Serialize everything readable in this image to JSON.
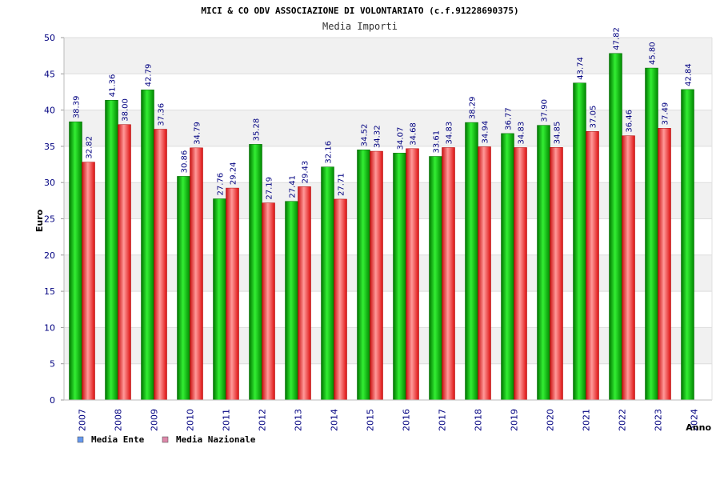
{
  "chart_data": {
    "type": "bar",
    "title": "MICI & CO ODV ASSOCIAZIONE DI VOLONTARIATO (c.f.91228690375)",
    "subtitle": "Media Importi",
    "xlabel": "Anno",
    "ylabel": "Euro",
    "ylim": [
      0,
      50
    ],
    "yticks": [
      "0",
      "5",
      "10",
      "15",
      "20",
      "25",
      "30",
      "35",
      "40",
      "45",
      "50"
    ],
    "grid": true,
    "legend_position": "bottom-left",
    "categories": [
      "2007",
      "2008",
      "2009",
      "2010",
      "2011",
      "2012",
      "2013",
      "2014",
      "2015",
      "2016",
      "2017",
      "2018",
      "2019",
      "2020",
      "2021",
      "2022",
      "2023",
      "2024"
    ],
    "series": [
      {
        "name": "Media Ente",
        "color": "#00bb00",
        "legend_color": "#6699ee",
        "values": [
          38.39,
          41.36,
          42.79,
          30.86,
          27.76,
          35.28,
          27.41,
          32.16,
          34.52,
          34.07,
          33.61,
          38.29,
          36.77,
          37.9,
          43.74,
          47.82,
          45.8,
          42.84
        ],
        "labels": [
          "38.39",
          "41.36",
          "42.79",
          "30.86",
          "27.76",
          "35.28",
          "27.41",
          "32.16",
          "34.52",
          "34.07",
          "33.61",
          "38.29",
          "36.77",
          "37.90",
          "43.74",
          "47.82",
          "45.80",
          "42.84"
        ]
      },
      {
        "name": "Media Nazionale",
        "color": "#ee2222",
        "legend_color": "#dd88aa",
        "values": [
          32.82,
          38.0,
          37.36,
          34.79,
          29.24,
          27.19,
          29.43,
          27.71,
          34.32,
          34.68,
          34.83,
          34.94,
          34.83,
          34.85,
          37.05,
          36.46,
          37.49,
          null
        ],
        "labels": [
          "32.82",
          "38.00",
          "37.36",
          "34.79",
          "29.24",
          "27.19",
          "29.43",
          "27.71",
          "34.32",
          "34.68",
          "34.83",
          "34.94",
          "34.83",
          "34.85",
          "37.05",
          "36.46",
          "37.49",
          ""
        ]
      }
    ]
  }
}
